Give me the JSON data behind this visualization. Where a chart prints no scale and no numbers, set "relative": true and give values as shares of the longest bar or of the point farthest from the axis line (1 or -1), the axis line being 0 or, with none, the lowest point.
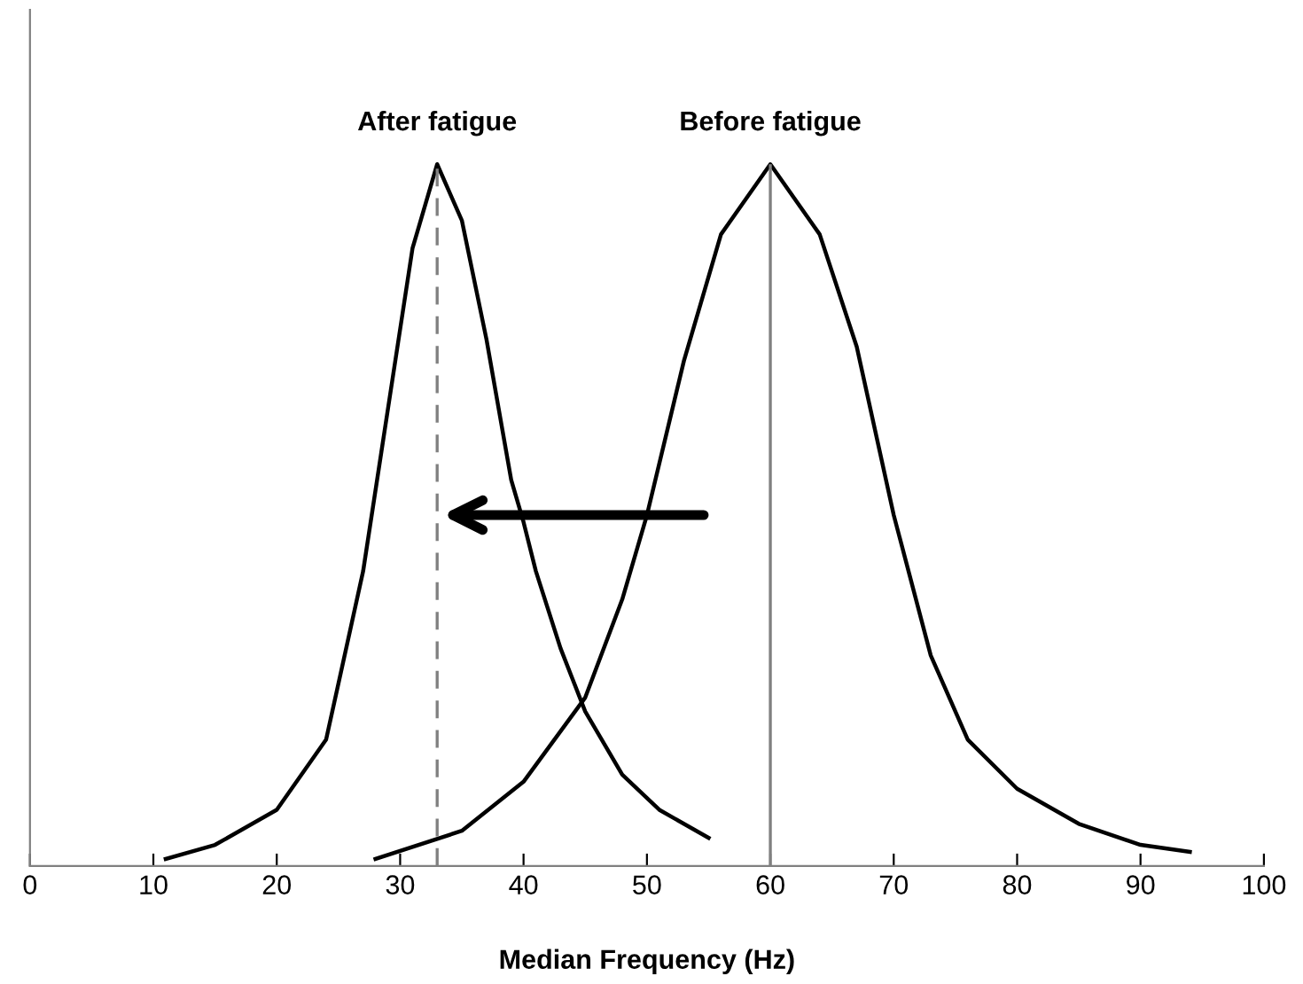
{
  "chart_data": {
    "type": "line",
    "relative": true,
    "xlabel": "Median Frequency (Hz)",
    "xlim": [
      0,
      100
    ],
    "xticks": [
      0,
      10,
      20,
      30,
      40,
      50,
      60,
      70,
      80,
      90,
      100
    ],
    "grid": false,
    "legend": false,
    "marker": "none",
    "series": [
      {
        "name": "After fatigue",
        "color": "#000000",
        "line_style": "solid",
        "x": [
          11,
          15,
          20,
          24,
          27,
          29,
          31,
          33,
          35,
          37,
          39,
          40,
          41,
          43,
          45,
          48,
          51,
          55
        ],
        "values": [
          0.01,
          0.03,
          0.08,
          0.18,
          0.42,
          0.65,
          0.88,
          1.0,
          0.92,
          0.75,
          0.55,
          0.49,
          0.42,
          0.31,
          0.22,
          0.13,
          0.08,
          0.04
        ]
      },
      {
        "name": "Before fatigue",
        "color": "#000000",
        "line_style": "solid",
        "x": [
          28,
          35,
          40,
          45,
          48,
          50,
          53,
          56,
          60,
          64,
          67,
          70,
          73,
          76,
          80,
          85,
          90,
          94
        ],
        "values": [
          0.01,
          0.05,
          0.12,
          0.24,
          0.38,
          0.5,
          0.72,
          0.9,
          1.0,
          0.9,
          0.74,
          0.5,
          0.3,
          0.18,
          0.11,
          0.06,
          0.03,
          0.02
        ]
      }
    ],
    "ref_lines": [
      {
        "axis": "x",
        "value": 33,
        "color": "#808080",
        "line_style": "dashed"
      },
      {
        "axis": "x",
        "value": 60,
        "color": "#808080",
        "line_style": "solid"
      }
    ]
  }
}
